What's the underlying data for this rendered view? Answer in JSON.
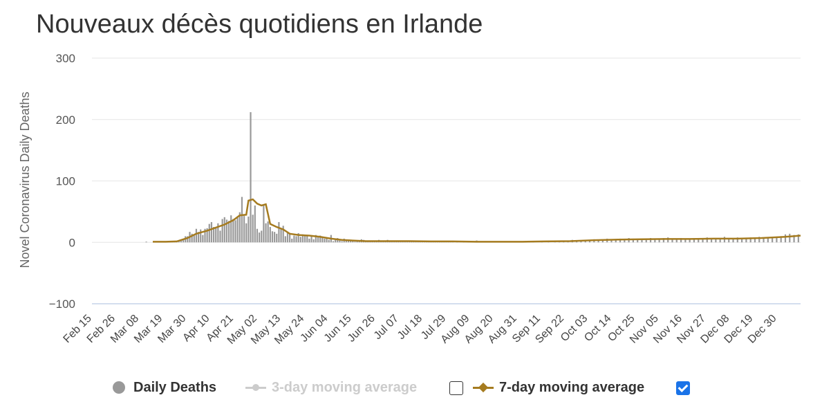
{
  "chart_data": {
    "type": "bar",
    "title": "Nouveaux décès quotidiens en Irlande",
    "xlabel": "",
    "ylabel": "Novel Coronavirus Daily Deaths",
    "ylim": [
      -100,
      300
    ],
    "yticks": [
      "300",
      "200",
      "100",
      "0",
      "−100"
    ],
    "ytick_values": [
      300,
      200,
      100,
      0,
      -100
    ],
    "x_start": "2020-02-15",
    "x_end": "2021-01-06",
    "xticks": [
      "Feb 15",
      "Feb 26",
      "Mar 08",
      "Mar 19",
      "Mar 30",
      "Apr 10",
      "Apr 21",
      "May 02",
      "May 13",
      "May 24",
      "Jun 04",
      "Jun 15",
      "Jun 26",
      "Jul 07",
      "Jul 18",
      "Jul 29",
      "Aug 09",
      "Aug 20",
      "Aug 31",
      "Sep 11",
      "Sep 22",
      "Oct 03",
      "Oct 14",
      "Oct 25",
      "Nov 05",
      "Nov 16",
      "Nov 27",
      "Dec 08",
      "Dec 19",
      "Dec 30"
    ],
    "grid": true,
    "colors": {
      "bars": "#999999",
      "avg7": "#a57b1f",
      "avg3": "#cccccc"
    },
    "series": [
      {
        "name": "Daily Deaths",
        "type": "bar",
        "points": [
          [
            "2020-03-11",
            1
          ],
          [
            "2020-03-15",
            1
          ],
          [
            "2020-03-18",
            1
          ],
          [
            "2020-03-20",
            1
          ],
          [
            "2020-03-21",
            1
          ],
          [
            "2020-03-22",
            1
          ],
          [
            "2020-03-23",
            1
          ],
          [
            "2020-03-24",
            1
          ],
          [
            "2020-03-25",
            2
          ],
          [
            "2020-03-26",
            3
          ],
          [
            "2020-03-27",
            3
          ],
          [
            "2020-03-28",
            5
          ],
          [
            "2020-03-29",
            10
          ],
          [
            "2020-03-30",
            10
          ],
          [
            "2020-03-31",
            17
          ],
          [
            "2020-04-01",
            14
          ],
          [
            "2020-04-02",
            13
          ],
          [
            "2020-04-03",
            22
          ],
          [
            "2020-04-04",
            17
          ],
          [
            "2020-04-05",
            21
          ],
          [
            "2020-04-06",
            12
          ],
          [
            "2020-04-07",
            22
          ],
          [
            "2020-04-08",
            23
          ],
          [
            "2020-04-09",
            30
          ],
          [
            "2020-04-10",
            33
          ],
          [
            "2020-04-11",
            25
          ],
          [
            "2020-04-12",
            23
          ],
          [
            "2020-04-13",
            31
          ],
          [
            "2020-04-14",
            19
          ],
          [
            "2020-04-15",
            38
          ],
          [
            "2020-04-16",
            41
          ],
          [
            "2020-04-17",
            37
          ],
          [
            "2020-04-18",
            35
          ],
          [
            "2020-04-19",
            44
          ],
          [
            "2020-04-20",
            38
          ],
          [
            "2020-04-21",
            36
          ],
          [
            "2020-04-22",
            40
          ],
          [
            "2020-04-23",
            49
          ],
          [
            "2020-04-24",
            74
          ],
          [
            "2020-04-25",
            43
          ],
          [
            "2020-04-26",
            31
          ],
          [
            "2020-04-27",
            42
          ],
          [
            "2020-04-28",
            212
          ],
          [
            "2020-04-29",
            45
          ],
          [
            "2020-04-30",
            60
          ],
          [
            "2020-05-01",
            22
          ],
          [
            "2020-05-02",
            16
          ],
          [
            "2020-05-03",
            19
          ],
          [
            "2020-05-04",
            62
          ],
          [
            "2020-05-05",
            31
          ],
          [
            "2020-05-06",
            34
          ],
          [
            "2020-05-07",
            25
          ],
          [
            "2020-05-08",
            18
          ],
          [
            "2020-05-09",
            17
          ],
          [
            "2020-05-10",
            14
          ],
          [
            "2020-05-11",
            33
          ],
          [
            "2020-05-12",
            22
          ],
          [
            "2020-05-13",
            27
          ],
          [
            "2020-05-14",
            10
          ],
          [
            "2020-05-15",
            16
          ],
          [
            "2020-05-16",
            15
          ],
          [
            "2020-05-17",
            6
          ],
          [
            "2020-05-18",
            11
          ],
          [
            "2020-05-19",
            10
          ],
          [
            "2020-05-20",
            15
          ],
          [
            "2020-05-21",
            9
          ],
          [
            "2020-05-22",
            13
          ],
          [
            "2020-05-23",
            11
          ],
          [
            "2020-05-24",
            10
          ],
          [
            "2020-05-25",
            6
          ],
          [
            "2020-05-26",
            10
          ],
          [
            "2020-05-27",
            5
          ],
          [
            "2020-05-28",
            12
          ],
          [
            "2020-05-29",
            9
          ],
          [
            "2020-05-30",
            11
          ],
          [
            "2020-05-31",
            9
          ],
          [
            "2020-06-01",
            6
          ],
          [
            "2020-06-02",
            7
          ],
          [
            "2020-06-03",
            4
          ],
          [
            "2020-06-04",
            12
          ],
          [
            "2020-06-05",
            2
          ],
          [
            "2020-06-06",
            4
          ],
          [
            "2020-06-07",
            7
          ],
          [
            "2020-06-08",
            3
          ],
          [
            "2020-06-09",
            2
          ],
          [
            "2020-06-10",
            6
          ],
          [
            "2020-06-11",
            4
          ],
          [
            "2020-06-12",
            3
          ],
          [
            "2020-06-13",
            2
          ],
          [
            "2020-06-14",
            4
          ],
          [
            "2020-06-15",
            1
          ],
          [
            "2020-06-16",
            3
          ],
          [
            "2020-06-17",
            3
          ],
          [
            "2020-06-18",
            5
          ],
          [
            "2020-06-19",
            4
          ],
          [
            "2020-06-20",
            2
          ],
          [
            "2020-06-21",
            1
          ],
          [
            "2020-06-22",
            3
          ],
          [
            "2020-06-23",
            2
          ],
          [
            "2020-06-24",
            3
          ],
          [
            "2020-06-25",
            2
          ],
          [
            "2020-06-26",
            4
          ],
          [
            "2020-06-27",
            3
          ],
          [
            "2020-06-28",
            2
          ],
          [
            "2020-06-29",
            3
          ],
          [
            "2020-06-30",
            4
          ],
          [
            "2020-07-01",
            2
          ],
          [
            "2020-07-02",
            3
          ],
          [
            "2020-07-03",
            1
          ],
          [
            "2020-07-04",
            2
          ],
          [
            "2020-07-05",
            1
          ],
          [
            "2020-07-06",
            2
          ],
          [
            "2020-07-07",
            3
          ],
          [
            "2020-07-08",
            2
          ],
          [
            "2020-07-09",
            1
          ],
          [
            "2020-07-10",
            2
          ],
          [
            "2020-07-11",
            3
          ],
          [
            "2020-07-12",
            1
          ],
          [
            "2020-07-13",
            2
          ],
          [
            "2020-07-14",
            1
          ],
          [
            "2020-07-15",
            2
          ],
          [
            "2020-07-16",
            3
          ],
          [
            "2020-07-17",
            1
          ],
          [
            "2020-07-18",
            2
          ],
          [
            "2020-07-19",
            1
          ],
          [
            "2020-07-20",
            2
          ],
          [
            "2020-07-21",
            1
          ],
          [
            "2020-07-22",
            2
          ],
          [
            "2020-07-23",
            1
          ],
          [
            "2020-07-24",
            2
          ],
          [
            "2020-07-25",
            1
          ],
          [
            "2020-07-26",
            1
          ],
          [
            "2020-07-27",
            2
          ],
          [
            "2020-07-28",
            1
          ],
          [
            "2020-07-29",
            1
          ],
          [
            "2020-07-30",
            2
          ],
          [
            "2020-08-01",
            1
          ],
          [
            "2020-08-04",
            2
          ],
          [
            "2020-08-06",
            1
          ],
          [
            "2020-08-08",
            2
          ],
          [
            "2020-08-10",
            3
          ],
          [
            "2020-08-12",
            1
          ],
          [
            "2020-08-14",
            2
          ],
          [
            "2020-08-17",
            1
          ],
          [
            "2020-08-20",
            1
          ],
          [
            "2020-08-24",
            2
          ],
          [
            "2020-08-28",
            1
          ],
          [
            "2020-09-01",
            1
          ],
          [
            "2020-09-05",
            1
          ],
          [
            "2020-09-09",
            2
          ],
          [
            "2020-09-12",
            1
          ],
          [
            "2020-09-15",
            2
          ],
          [
            "2020-09-17",
            1
          ],
          [
            "2020-09-19",
            3
          ],
          [
            "2020-09-21",
            2
          ],
          [
            "2020-09-23",
            4
          ],
          [
            "2020-09-25",
            3
          ],
          [
            "2020-09-27",
            2
          ],
          [
            "2020-09-29",
            3
          ],
          [
            "2020-10-01",
            4
          ],
          [
            "2020-10-03",
            5
          ],
          [
            "2020-10-05",
            3
          ],
          [
            "2020-10-07",
            4
          ],
          [
            "2020-10-09",
            6
          ],
          [
            "2020-10-11",
            5
          ],
          [
            "2020-10-13",
            4
          ],
          [
            "2020-10-15",
            6
          ],
          [
            "2020-10-17",
            5
          ],
          [
            "2020-10-19",
            7
          ],
          [
            "2020-10-21",
            6
          ],
          [
            "2020-10-23",
            4
          ],
          [
            "2020-10-25",
            5
          ],
          [
            "2020-10-27",
            6
          ],
          [
            "2020-10-29",
            7
          ],
          [
            "2020-10-31",
            5
          ],
          [
            "2020-11-02",
            6
          ],
          [
            "2020-11-04",
            7
          ],
          [
            "2020-11-06",
            8
          ],
          [
            "2020-11-08",
            5
          ],
          [
            "2020-11-10",
            6
          ],
          [
            "2020-11-12",
            7
          ],
          [
            "2020-11-14",
            6
          ],
          [
            "2020-11-16",
            5
          ],
          [
            "2020-11-18",
            7
          ],
          [
            "2020-11-20",
            6
          ],
          [
            "2020-11-22",
            5
          ],
          [
            "2020-11-24",
            8
          ],
          [
            "2020-11-26",
            6
          ],
          [
            "2020-11-28",
            5
          ],
          [
            "2020-11-30",
            7
          ],
          [
            "2020-12-02",
            9
          ],
          [
            "2020-12-04",
            7
          ],
          [
            "2020-12-06",
            6
          ],
          [
            "2020-12-08",
            8
          ],
          [
            "2020-12-10",
            7
          ],
          [
            "2020-12-12",
            6
          ],
          [
            "2020-12-14",
            8
          ],
          [
            "2020-12-16",
            7
          ],
          [
            "2020-12-18",
            9
          ],
          [
            "2020-12-20",
            8
          ],
          [
            "2020-12-22",
            7
          ],
          [
            "2020-12-24",
            9
          ],
          [
            "2020-12-26",
            8
          ],
          [
            "2020-12-28",
            10
          ],
          [
            "2020-12-30",
            13
          ],
          [
            "2021-01-01",
            14
          ],
          [
            "2021-01-03",
            12
          ],
          [
            "2021-01-05",
            13
          ]
        ]
      },
      {
        "name": "7-day moving average",
        "type": "line",
        "points": [
          [
            "2020-03-14",
            1
          ],
          [
            "2020-03-20",
            1
          ],
          [
            "2020-03-25",
            1.5
          ],
          [
            "2020-03-30",
            7
          ],
          [
            "2020-04-03",
            14
          ],
          [
            "2020-04-08",
            19
          ],
          [
            "2020-04-12",
            24
          ],
          [
            "2020-04-16",
            29
          ],
          [
            "2020-04-20",
            36
          ],
          [
            "2020-04-23",
            44
          ],
          [
            "2020-04-26",
            45
          ],
          [
            "2020-04-27",
            68
          ],
          [
            "2020-04-29",
            70
          ],
          [
            "2020-05-01",
            63
          ],
          [
            "2020-05-03",
            60
          ],
          [
            "2020-05-05",
            62
          ],
          [
            "2020-05-07",
            30
          ],
          [
            "2020-05-10",
            25
          ],
          [
            "2020-05-13",
            21
          ],
          [
            "2020-05-16",
            14
          ],
          [
            "2020-05-20",
            12
          ],
          [
            "2020-05-25",
            11
          ],
          [
            "2020-05-30",
            9
          ],
          [
            "2020-06-04",
            6
          ],
          [
            "2020-06-09",
            4
          ],
          [
            "2020-06-14",
            3
          ],
          [
            "2020-06-20",
            2
          ],
          [
            "2020-06-30",
            2
          ],
          [
            "2020-07-10",
            2
          ],
          [
            "2020-07-20",
            1.5
          ],
          [
            "2020-07-30",
            1.5
          ],
          [
            "2020-08-10",
            1
          ],
          [
            "2020-08-20",
            1
          ],
          [
            "2020-08-31",
            1
          ],
          [
            "2020-09-10",
            1.5
          ],
          [
            "2020-09-22",
            2
          ],
          [
            "2020-10-03",
            3.5
          ],
          [
            "2020-10-14",
            4.5
          ],
          [
            "2020-10-25",
            5
          ],
          [
            "2020-11-05",
            5.5
          ],
          [
            "2020-11-16",
            5.5
          ],
          [
            "2020-11-27",
            6
          ],
          [
            "2020-12-08",
            6
          ],
          [
            "2020-12-19",
            7
          ],
          [
            "2020-12-30",
            9
          ],
          [
            "2021-01-06",
            11
          ]
        ]
      }
    ]
  },
  "legend": {
    "items": [
      {
        "label": "Daily Deaths"
      },
      {
        "label": "3-day moving average",
        "checked": false
      },
      {
        "label": "7-day moving average",
        "checked": true
      }
    ]
  }
}
